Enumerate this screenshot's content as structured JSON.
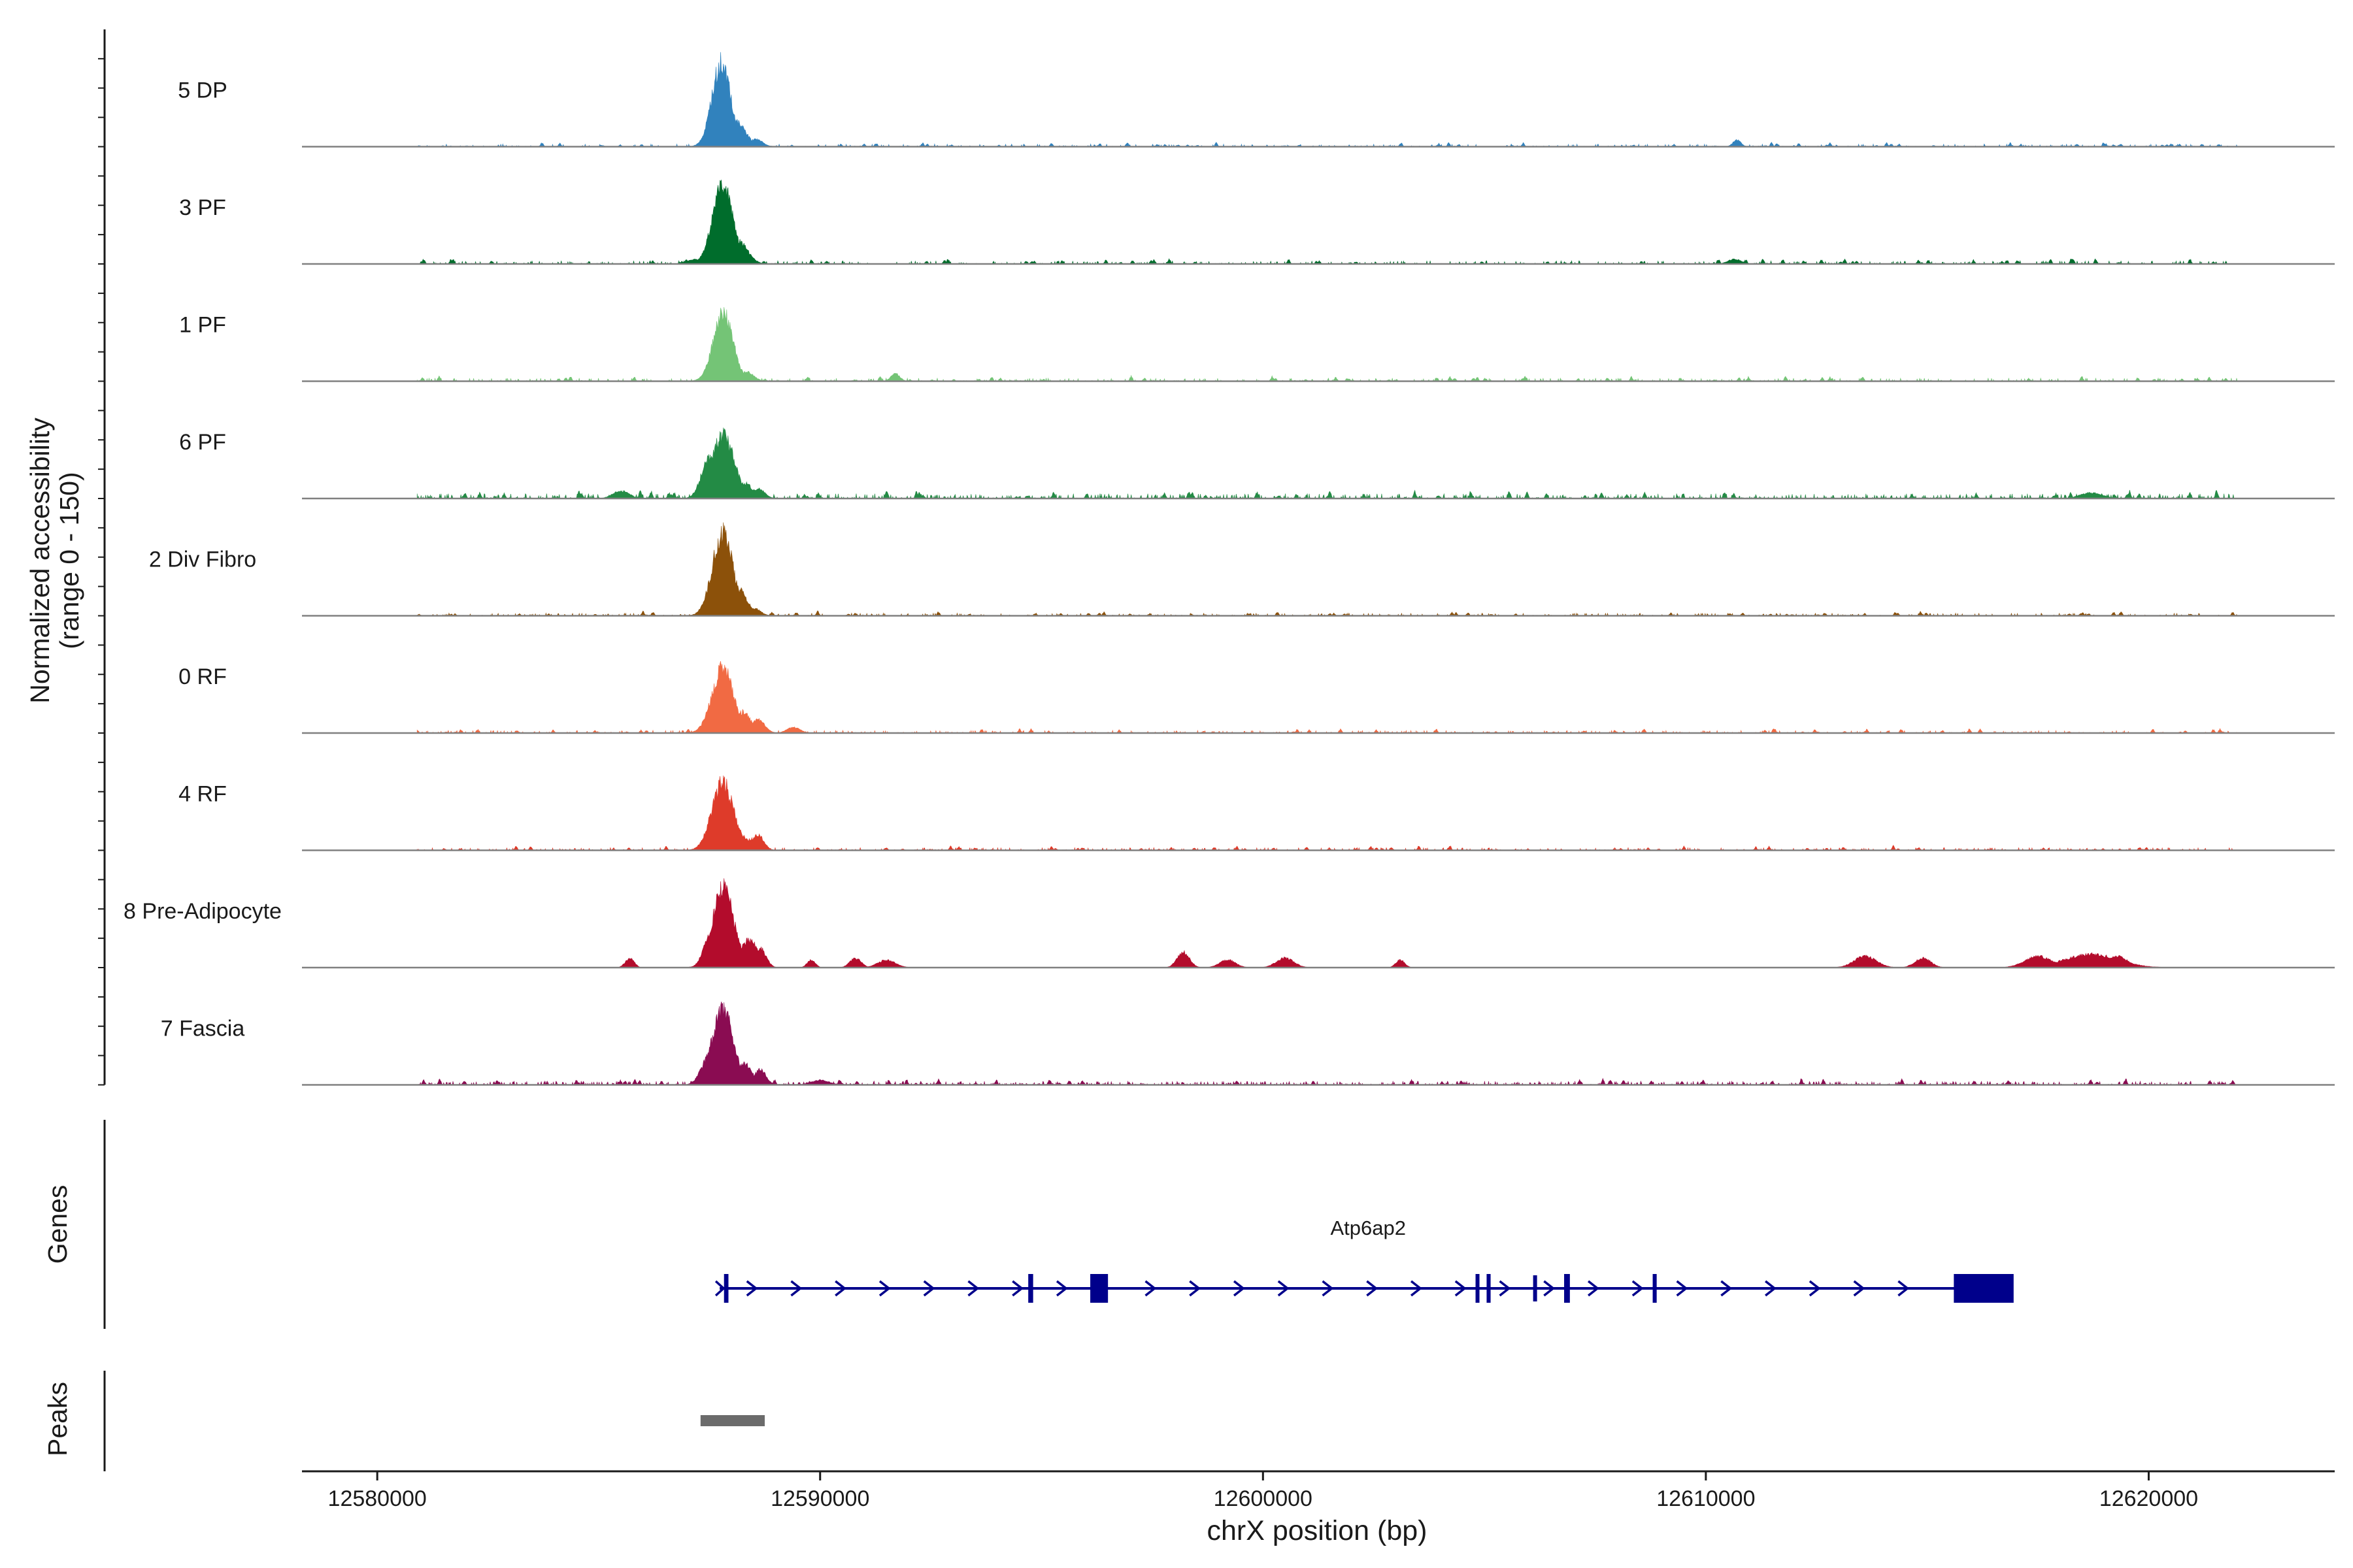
{
  "chart_data": {
    "type": "area",
    "ylabel_line1": "Normalized accessibility",
    "ylabel_line2": "(range 0 - 150)",
    "xlabel": "chrX position (bp)",
    "xlim": [
      12578300,
      12624200
    ],
    "xticks": [
      12580000,
      12590000,
      12600000,
      12610000,
      12620000
    ],
    "xtick_labels": [
      "12580000",
      "12590000",
      "12600000",
      "12610000",
      "12620000"
    ],
    "tracks": [
      {
        "name": "5 DP",
        "color": "#3182bd",
        "peaks": [
          [
            12587770,
            0.88,
            210
          ],
          [
            12588120,
            0.26,
            200
          ],
          [
            12588550,
            0.08,
            150
          ],
          [
            12610700,
            0.07,
            90
          ]
        ],
        "noise_level": 0.025,
        "dense": false,
        "seed": 11
      },
      {
        "name": "3 PF",
        "color": "#006d2c",
        "peaks": [
          [
            12587800,
            0.82,
            230
          ],
          [
            12588150,
            0.24,
            210
          ],
          [
            12587200,
            0.05,
            200
          ],
          [
            12610650,
            0.05,
            150
          ]
        ],
        "noise_level": 0.03,
        "dense": false,
        "seed": 23
      },
      {
        "name": "1 PF",
        "color": "#74c476",
        "peaks": [
          [
            12587810,
            0.72,
            220
          ],
          [
            12587500,
            0.12,
            130
          ],
          [
            12588350,
            0.1,
            150
          ],
          [
            12591700,
            0.08,
            100
          ]
        ],
        "noise_level": 0.03,
        "dense": false,
        "seed": 37
      },
      {
        "name": "6 PF",
        "color": "#238b45",
        "peaks": [
          [
            12587800,
            0.66,
            260
          ],
          [
            12587500,
            0.42,
            180
          ],
          [
            12588300,
            0.16,
            180
          ],
          [
            12588600,
            0.1,
            150
          ],
          [
            12585500,
            0.08,
            180
          ],
          [
            12618700,
            0.06,
            250
          ]
        ],
        "noise_level": 0.045,
        "dense": true,
        "seed": 41
      },
      {
        "name": "2 Div Fibro",
        "color": "#8c510a",
        "peaks": [
          [
            12587800,
            0.88,
            230
          ],
          [
            12588150,
            0.28,
            200
          ],
          [
            12588500,
            0.08,
            150
          ]
        ],
        "noise_level": 0.025,
        "dense": false,
        "seed": 53
      },
      {
        "name": "0 RF",
        "color": "#f16a43",
        "peaks": [
          [
            12587800,
            0.68,
            240
          ],
          [
            12588250,
            0.22,
            180
          ],
          [
            12588600,
            0.14,
            150
          ],
          [
            12589400,
            0.06,
            150
          ]
        ],
        "noise_level": 0.025,
        "dense": false,
        "seed": 67
      },
      {
        "name": "4 RF",
        "color": "#de3b2a",
        "peaks": [
          [
            12587800,
            0.72,
            240
          ],
          [
            12588150,
            0.2,
            180
          ],
          [
            12588600,
            0.16,
            130
          ],
          [
            12588450,
            0.12,
            120
          ]
        ],
        "noise_level": 0.025,
        "dense": false,
        "seed": 71
      },
      {
        "name": "8 Pre-Adipocyte",
        "color": "#b30c2c",
        "peaks": [
          [
            12587810,
            0.85,
            240
          ],
          [
            12587500,
            0.3,
            150
          ],
          [
            12588400,
            0.3,
            200
          ],
          [
            12588650,
            0.2,
            130
          ],
          [
            12585700,
            0.1,
            100
          ],
          [
            12589800,
            0.08,
            90
          ],
          [
            12590800,
            0.1,
            130
          ],
          [
            12591500,
            0.08,
            200
          ],
          [
            12598200,
            0.16,
            140
          ],
          [
            12599200,
            0.08,
            180
          ],
          [
            12600500,
            0.1,
            200
          ],
          [
            12603100,
            0.08,
            100
          ],
          [
            12613600,
            0.12,
            250
          ],
          [
            12614900,
            0.1,
            180
          ],
          [
            12617500,
            0.12,
            300
          ],
          [
            12618700,
            0.14,
            600
          ],
          [
            12619300,
            0.12,
            220
          ]
        ],
        "noise_level": 0.0,
        "dense": false,
        "seed": 83
      },
      {
        "name": "7 Fascia",
        "color": "#8a0c52",
        "peaks": [
          [
            12587800,
            0.8,
            240
          ],
          [
            12587500,
            0.3,
            180
          ],
          [
            12588300,
            0.22,
            170
          ],
          [
            12588650,
            0.16,
            130
          ],
          [
            12590000,
            0.05,
            200
          ]
        ],
        "noise_level": 0.035,
        "dense": true,
        "seed": 97
      }
    ],
    "genes": {
      "track_label": "Genes",
      "name": "Atp6ap2",
      "color": "#00008b",
      "start": 12587850,
      "end": 12616900,
      "strand": "+",
      "exons": [
        [
          12587830,
          12587930
        ],
        [
          12594700,
          12594810
        ],
        [
          12596100,
          12596500
        ],
        [
          12604800,
          12604880
        ],
        [
          12605050,
          12605140
        ],
        [
          12606100,
          12606140
        ],
        [
          12606800,
          12606930
        ],
        [
          12608800,
          12608890
        ],
        [
          12615600,
          12616950
        ]
      ]
    },
    "peaks": {
      "track_label": "Peaks",
      "color": "#6b6b6b",
      "regions": [
        [
          12587300,
          12588750
        ]
      ]
    }
  }
}
